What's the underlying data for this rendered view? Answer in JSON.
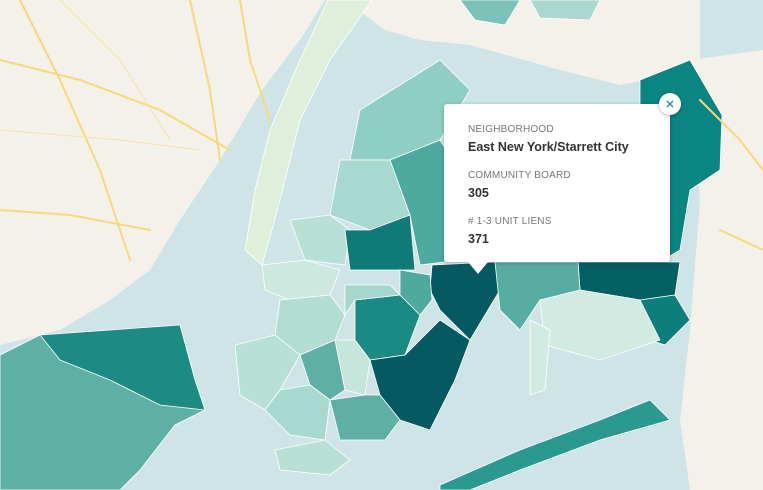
{
  "popup": {
    "fields": [
      {
        "label": "NEIGHBORHOOD",
        "value": "East New York/Starrett City"
      },
      {
        "label": "COMMUNITY BOARD",
        "value": 305
      },
      {
        "label": "# 1-3 UNIT LIENS",
        "value": 371
      }
    ]
  }
}
